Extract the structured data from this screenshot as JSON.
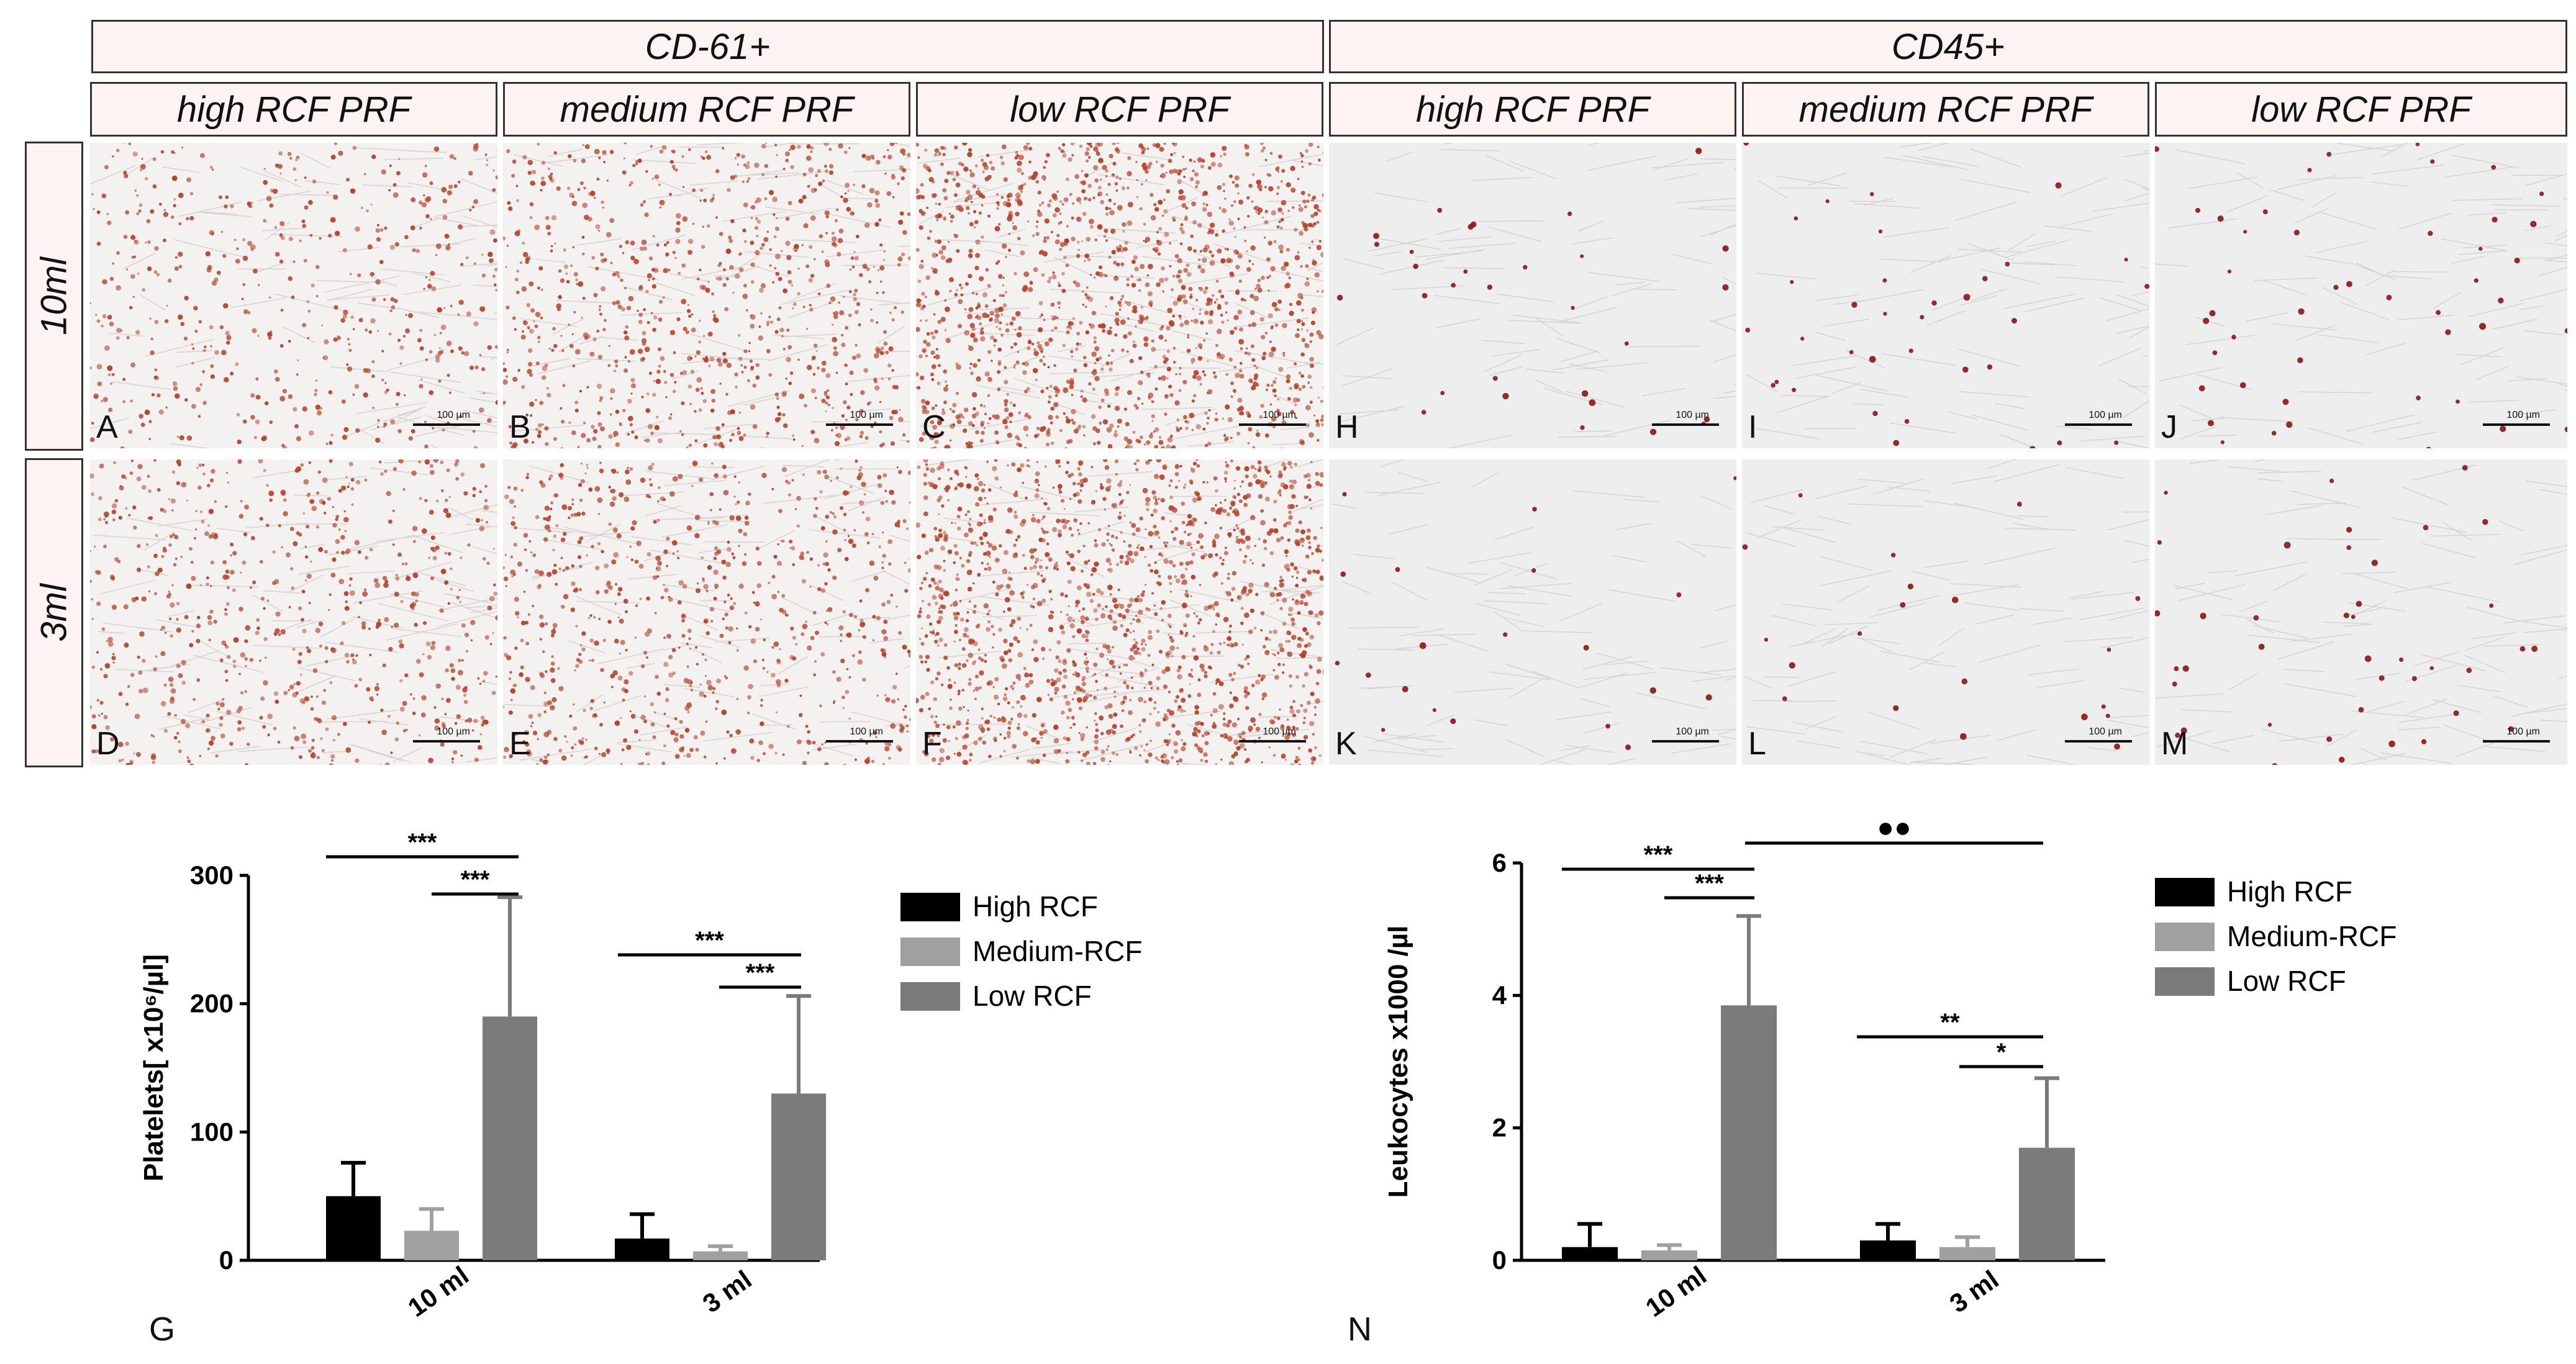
{
  "headers": {
    "groups": [
      "CD-61+",
      "CD45+"
    ],
    "columns": [
      "high RCF PRF",
      "medium RCF PRF",
      "low RCF PRF",
      "high RCF PRF",
      "medium RCF PRF",
      "low RCF PRF"
    ],
    "rows": [
      "10ml",
      "3ml"
    ]
  },
  "panels": {
    "letters": [
      "A",
      "B",
      "C",
      "H",
      "I",
      "J",
      "D",
      "E",
      "F",
      "K",
      "L",
      "M"
    ],
    "scale_label": "100 µm"
  },
  "colors": {
    "header_fill": "#fdf3f3",
    "stain_cd61": "#b5442e",
    "stain_cd45": "#8a1414",
    "high_rcf": "#000000",
    "medium_rcf": "#a0a0a0",
    "low_rcf": "#7b7b7b"
  },
  "chart_data": [
    {
      "type": "bar",
      "panel_label": "G",
      "ylabel": "Platelets[ x10⁶/µl]",
      "categories": [
        "10 ml",
        "3 ml"
      ],
      "series": [
        {
          "name": "High RCF",
          "values": [
            50,
            17
          ],
          "errors": [
            26,
            19
          ]
        },
        {
          "name": "Medium-RCF",
          "values": [
            23,
            7
          ],
          "errors": [
            17,
            4
          ]
        },
        {
          "name": "Low RCF",
          "values": [
            190,
            130
          ],
          "errors": [
            93,
            76
          ]
        }
      ],
      "ylim": [
        0,
        300
      ],
      "yticks": [
        "0",
        "100",
        "200",
        "300"
      ],
      "legend_position": "right",
      "significance": [
        "***",
        "***",
        "***",
        "***"
      ]
    },
    {
      "type": "bar",
      "panel_label": "N",
      "ylabel": "Leukocytes x1000 /µl",
      "categories": [
        "10 ml",
        "3 ml"
      ],
      "series": [
        {
          "name": "High RCF",
          "values": [
            0.2,
            0.3
          ],
          "errors": [
            0.35,
            0.25
          ]
        },
        {
          "name": "Medium-RCF",
          "values": [
            0.15,
            0.2
          ],
          "errors": [
            0.08,
            0.15
          ]
        },
        {
          "name": "Low RCF",
          "values": [
            3.85,
            1.7
          ],
          "errors": [
            1.35,
            1.05
          ]
        }
      ],
      "ylim": [
        0,
        6
      ],
      "yticks": [
        "0",
        "2",
        "4",
        "6"
      ],
      "legend_position": "right",
      "significance": [
        "***",
        "***",
        "●●",
        "**",
        "*"
      ]
    }
  ]
}
